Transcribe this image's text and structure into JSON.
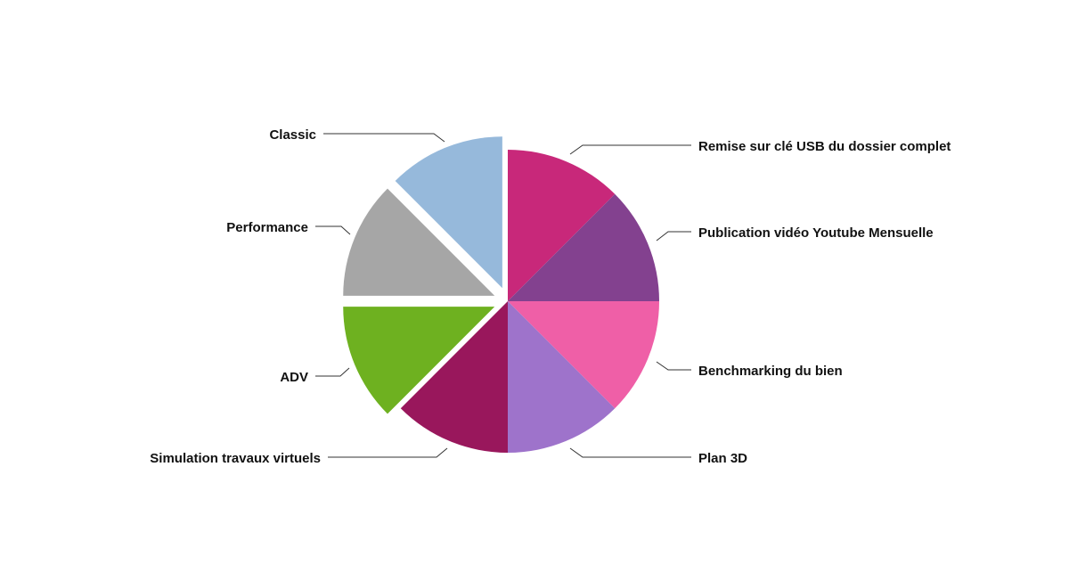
{
  "chart_data": {
    "type": "pie",
    "title": "",
    "slices": [
      {
        "label": "Remise sur clé USB du dossier complet",
        "value": 1,
        "color": "#c8287a",
        "exploded": false
      },
      {
        "label": "Publication vidéo Youtube Mensuelle",
        "value": 1,
        "color": "#83418f",
        "exploded": false
      },
      {
        "label": "Benchmarking du bien",
        "value": 1,
        "color": "#ef5fa7",
        "exploded": false
      },
      {
        "label": "Plan 3D",
        "value": 1,
        "color": "#9e73cb",
        "exploded": false
      },
      {
        "label": "Simulation travaux virtuels",
        "value": 1,
        "color": "#99175c",
        "exploded": false
      },
      {
        "label": "ADV",
        "value": 1,
        "color": "#6eb120",
        "exploded": true
      },
      {
        "label": "Performance",
        "value": 1,
        "color": "#a6a6a6",
        "exploded": true
      },
      {
        "label": "Classic",
        "value": 1,
        "color": "#96b9db",
        "exploded": true
      }
    ],
    "legend": "none"
  }
}
